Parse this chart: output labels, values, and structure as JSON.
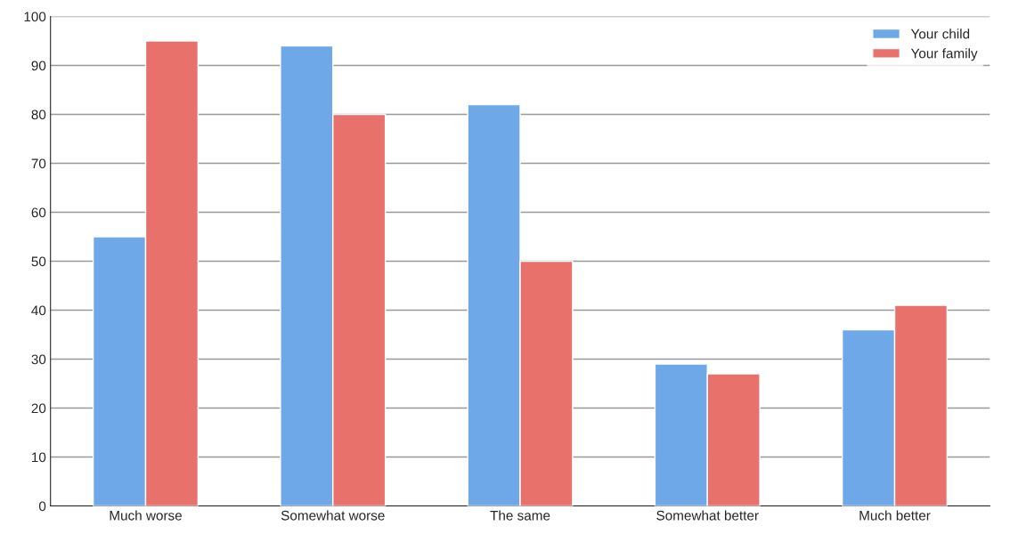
{
  "chart_data": {
    "type": "bar",
    "categories": [
      "Much worse",
      "Somewhat worse",
      "The same",
      "Somewhat better",
      "Much better"
    ],
    "series": [
      {
        "name": "Your child",
        "color": "#6fa8e8",
        "values": [
          55,
          94,
          82,
          29,
          36
        ]
      },
      {
        "name": "Your family",
        "color": "#e8716b",
        "values": [
          95,
          80,
          50,
          27,
          41
        ]
      }
    ],
    "ylim": [
      0,
      100
    ],
    "yticks": [
      0,
      10,
      20,
      30,
      40,
      50,
      60,
      70,
      80,
      90,
      100
    ],
    "grid": "y",
    "legend": "top right"
  }
}
